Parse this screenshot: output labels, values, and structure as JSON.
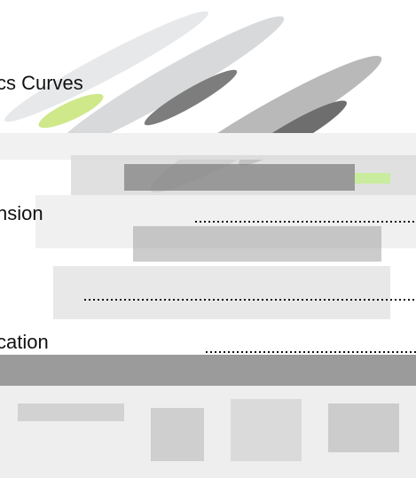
{
  "entries": [
    {
      "label": "cs Curves"
    },
    {
      "label": "nsion"
    },
    {
      "label": "cation"
    }
  ]
}
